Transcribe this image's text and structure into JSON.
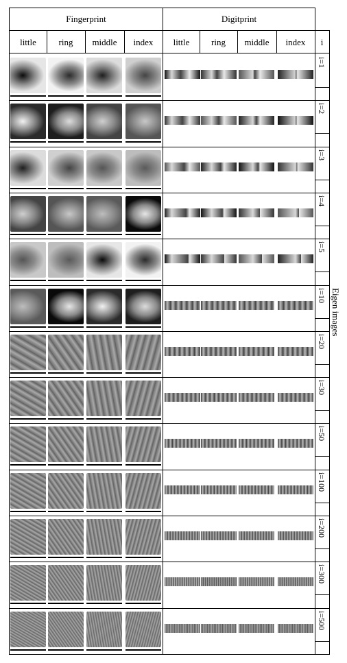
{
  "header": {
    "group_fingerprint": "Fingerprint",
    "group_digitprint": "Digitprint",
    "index_symbol": "i"
  },
  "columns": {
    "fingerprint": [
      "little",
      "ring",
      "middle",
      "index"
    ],
    "digitprint": [
      "little",
      "ring",
      "middle",
      "index"
    ]
  },
  "side_label": "Eigen images",
  "rows": [
    {
      "label": "i=1"
    },
    {
      "label": "i=2"
    },
    {
      "label": "i=3"
    },
    {
      "label": "i=4"
    },
    {
      "label": "i=5"
    },
    {
      "label": "i=10"
    },
    {
      "label": "i=20"
    },
    {
      "label": "i=30"
    },
    {
      "label": "i=50"
    },
    {
      "label": "i=100"
    },
    {
      "label": "i=200"
    },
    {
      "label": "i=300"
    },
    {
      "label": "i=500"
    }
  ]
}
